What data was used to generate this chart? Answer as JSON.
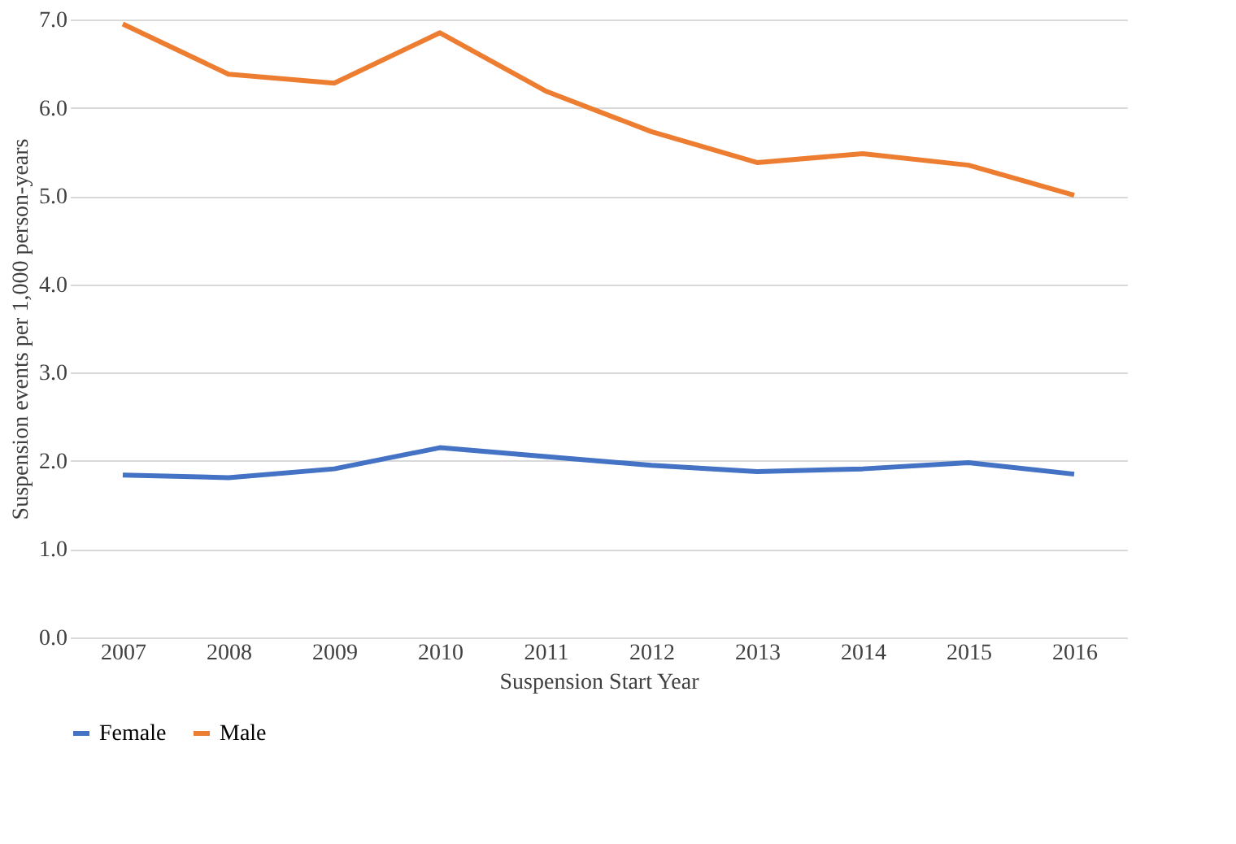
{
  "chart_data": {
    "type": "line",
    "xlabel": "Suspension Start Year",
    "ylabel": "Suspension events per 1,000 person-years",
    "categories": [
      "2007",
      "2008",
      "2009",
      "2010",
      "2011",
      "2012",
      "2013",
      "2014",
      "2015",
      "2016"
    ],
    "series": [
      {
        "name": "Female",
        "color": "#4472c4",
        "values": [
          1.84,
          1.81,
          1.91,
          2.15,
          2.05,
          1.95,
          1.88,
          1.91,
          1.98,
          1.85
        ]
      },
      {
        "name": "Male",
        "color": "#ed7d31",
        "values": [
          6.95,
          6.38,
          6.28,
          6.85,
          6.19,
          5.73,
          5.38,
          5.48,
          5.35,
          5.01
        ]
      }
    ],
    "ylim": [
      0,
      7
    ],
    "yticks": [
      {
        "value": 0,
        "label": "0.0"
      },
      {
        "value": 1,
        "label": "1.0"
      },
      {
        "value": 2,
        "label": "2.0"
      },
      {
        "value": 3,
        "label": "3.0"
      },
      {
        "value": 4,
        "label": "4.0"
      },
      {
        "value": 5,
        "label": "5.0"
      },
      {
        "value": 6,
        "label": "6.0"
      },
      {
        "value": 7,
        "label": "7.0"
      }
    ],
    "grid": "y",
    "legend": "bottom",
    "marker": "none",
    "line_style": "solid"
  }
}
